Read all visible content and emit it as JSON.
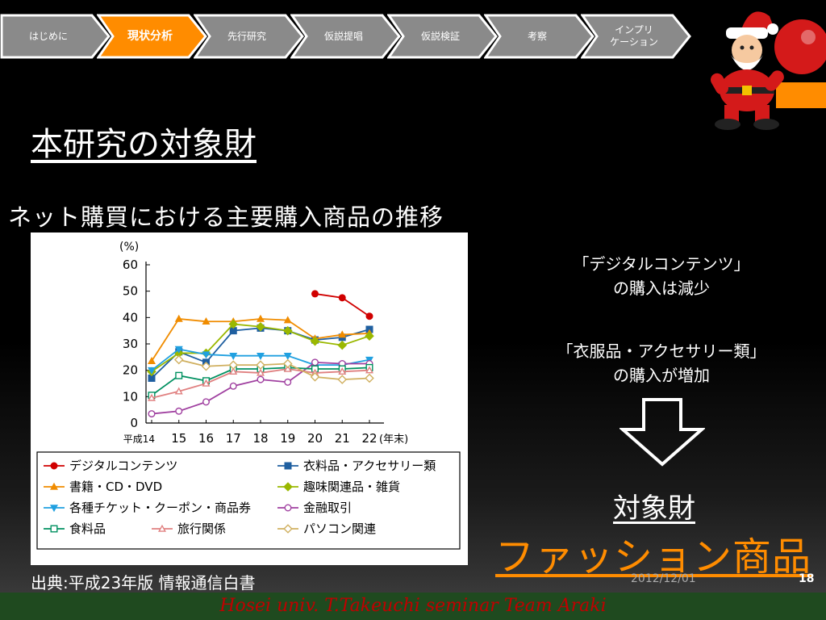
{
  "nav": {
    "steps": [
      {
        "label": "はじめに",
        "active": false
      },
      {
        "label": "現状分析",
        "active": true
      },
      {
        "label": "先行研究",
        "active": false
      },
      {
        "label": "仮説提唱",
        "active": false
      },
      {
        "label": "仮説検証",
        "active": false
      },
      {
        "label": "考察",
        "active": false
      },
      {
        "label": "インプリ\nケーション",
        "active": false
      }
    ],
    "colors": {
      "inactive": "#8a8a8a",
      "active": "#ff8c00",
      "border": "#ffffff"
    }
  },
  "slide": {
    "title": "本研究の対象財",
    "subtitle": "ネット購買における主要購入商品の推移",
    "source": "出典:平成23年版 情報通信白書",
    "note1": "「デジタルコンテンツ」\nの購入は減少",
    "note2": "「衣服品・アクセサリー類」\nの購入が増加",
    "arrow_icon": "down-arrow-icon",
    "target_label": "対象財",
    "target_value": "ファッション商品",
    "date": "2012/12/01",
    "page_number": "18",
    "footer": "Hosei univ. T.Takeuchi seminar Team Araki",
    "decor_icon": "santa-icon",
    "accent_color": "#ff8c00"
  },
  "chart_data": {
    "type": "line",
    "ylabel": "(%)",
    "xlabel": "(年末)",
    "x_tick_labels": [
      "平成14",
      "15",
      "16",
      "17",
      "18",
      "19",
      "20",
      "21",
      "22"
    ],
    "ylim": [
      0,
      60
    ],
    "y_ticks": [
      0,
      10,
      20,
      30,
      40,
      50,
      60
    ],
    "legend_columns": 2,
    "series": [
      {
        "name": "デジタルコンテンツ",
        "color": "#d00000",
        "marker": "circle-filled",
        "values": [
          null,
          null,
          null,
          null,
          null,
          null,
          49,
          47.5,
          40.5
        ]
      },
      {
        "name": "衣料品・アクセサリー類",
        "color": "#1f5fa0",
        "marker": "square-filled",
        "values": [
          17,
          27,
          23,
          35,
          36,
          35,
          31.5,
          32.5,
          35.5
        ]
      },
      {
        "name": "書籍・CD・DVD",
        "color": "#f08c00",
        "marker": "triangle-filled",
        "values": [
          23.5,
          39.5,
          38.5,
          38.5,
          39.5,
          39,
          32,
          33.5,
          34
        ]
      },
      {
        "name": "趣味関連品・雑貨",
        "color": "#9ab800",
        "marker": "diamond-filled",
        "values": [
          19.5,
          26.5,
          26.5,
          37.5,
          36.5,
          35,
          31,
          29.5,
          33
        ]
      },
      {
        "name": "各種チケット・クーポン・商品券",
        "color": "#20a0e0",
        "marker": "triangle-down-filled",
        "values": [
          20,
          28,
          26,
          25.5,
          25.5,
          25.5,
          22,
          22,
          24
        ]
      },
      {
        "name": "金融取引",
        "color": "#a040a0",
        "marker": "circle-open",
        "values": [
          3.5,
          4.5,
          8,
          14,
          16.5,
          15.5,
          23,
          22.5,
          22.5
        ]
      },
      {
        "name": "食料品",
        "color": "#009060",
        "marker": "square-open",
        "values": [
          10.5,
          18,
          16,
          20.5,
          20.5,
          21,
          20.5,
          20.5,
          21
        ]
      },
      {
        "name": "旅行関係",
        "color": "#e08080",
        "marker": "triangle-open",
        "values": [
          9.5,
          12,
          15,
          19.5,
          19,
          20.5,
          19,
          19.5,
          20
        ]
      },
      {
        "name": "パソコン関連",
        "color": "#d0b060",
        "marker": "diamond-open",
        "values": [
          null,
          24,
          21.5,
          22,
          22,
          22.5,
          17.5,
          16.5,
          17
        ]
      }
    ]
  }
}
